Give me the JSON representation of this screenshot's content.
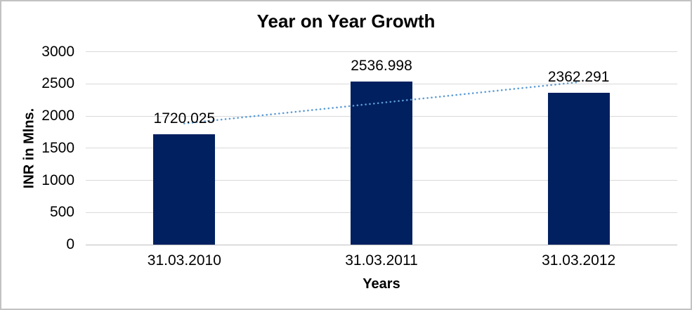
{
  "chart_data": {
    "type": "bar",
    "title": "Year on Year Growth",
    "xlabel": "Years",
    "ylabel": "INR in Mlns.",
    "categories": [
      "31.03.2010",
      "31.03.2011",
      "31.03.2012"
    ],
    "values": [
      1720.025,
      2536.998,
      2362.291
    ],
    "value_labels": [
      "1720.025",
      "2536.998",
      "2362.291"
    ],
    "yticks": [
      0,
      500,
      1000,
      1500,
      2000,
      2500,
      3000
    ],
    "ylim": [
      0,
      3000
    ],
    "grid": true,
    "legend": "none",
    "bar_color": "#002060",
    "gridline_color": "#d9d9d9",
    "trendline": {
      "type": "linear",
      "style": "dotted",
      "color": "#5B9BD5",
      "start": {
        "category_index": 0,
        "value": 1885
      },
      "end": {
        "category_index": 2,
        "value": 2528
      }
    }
  }
}
